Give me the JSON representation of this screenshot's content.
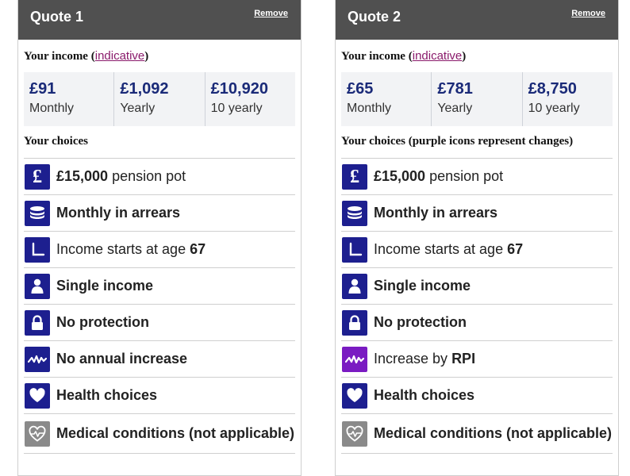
{
  "quotes": [
    {
      "title": "Quote 1",
      "remove_label": "Remove",
      "income_label": "Your income",
      "indicative_link": "indicative",
      "income": [
        {
          "amount": "£91",
          "period": "Monthly"
        },
        {
          "amount": "£1,092",
          "period": "Yearly"
        },
        {
          "amount": "£10,920",
          "period": "10 yearly"
        }
      ],
      "choices_label": "Your choices",
      "choices": [
        {
          "icon": "pound-icon",
          "bold": "£15,000",
          "text": " pension pot"
        },
        {
          "icon": "coins-icon",
          "bold": "Monthly in arrears",
          "text": ""
        },
        {
          "icon": "clock-icon",
          "text": "Income starts at age ",
          "bold_after": "67"
        },
        {
          "icon": "person-icon",
          "bold": "Single income",
          "text": ""
        },
        {
          "icon": "lock-icon",
          "bold": "No protection",
          "text": ""
        },
        {
          "icon": "zigzag-icon",
          "bold": "No annual increase",
          "text": ""
        },
        {
          "icon": "heart-icon",
          "bold": "Health choices",
          "text": ""
        },
        {
          "icon": "medical-heart-icon",
          "bold": "Medical conditions (not applicable)",
          "text": ""
        }
      ]
    },
    {
      "title": "Quote 2",
      "remove_label": "Remove",
      "income_label": "Your income",
      "indicative_link": "indicative",
      "income": [
        {
          "amount": "£65",
          "period": "Monthly"
        },
        {
          "amount": "£781",
          "period": "Yearly"
        },
        {
          "amount": "£8,750",
          "period": "10 yearly"
        }
      ],
      "choices_label": "Your choices (purple icons represent changes)",
      "choices": [
        {
          "icon": "pound-icon",
          "bold": "£15,000",
          "text": " pension pot"
        },
        {
          "icon": "coins-icon",
          "bold": "Monthly in arrears",
          "text": ""
        },
        {
          "icon": "clock-icon",
          "text": "Income starts at age ",
          "bold_after": "67"
        },
        {
          "icon": "person-icon",
          "bold": "Single income",
          "text": ""
        },
        {
          "icon": "lock-icon",
          "bold": "No protection",
          "text": ""
        },
        {
          "icon": "zigzag-icon",
          "text": "Increase by ",
          "bold_after": "RPI",
          "changed": true
        },
        {
          "icon": "heart-icon",
          "bold": "Health choices",
          "text": ""
        },
        {
          "icon": "medical-heart-icon",
          "bold": "Medical conditions (not applicable)",
          "text": ""
        }
      ]
    }
  ],
  "colors": {
    "header_bg": "#505050",
    "icon_default": "#1d1f8f",
    "icon_changed": "#7a1bc2",
    "icon_not_applicable": "#8a8a8a",
    "amount_text": "#1a2a78",
    "link": "#8a1a6b"
  }
}
